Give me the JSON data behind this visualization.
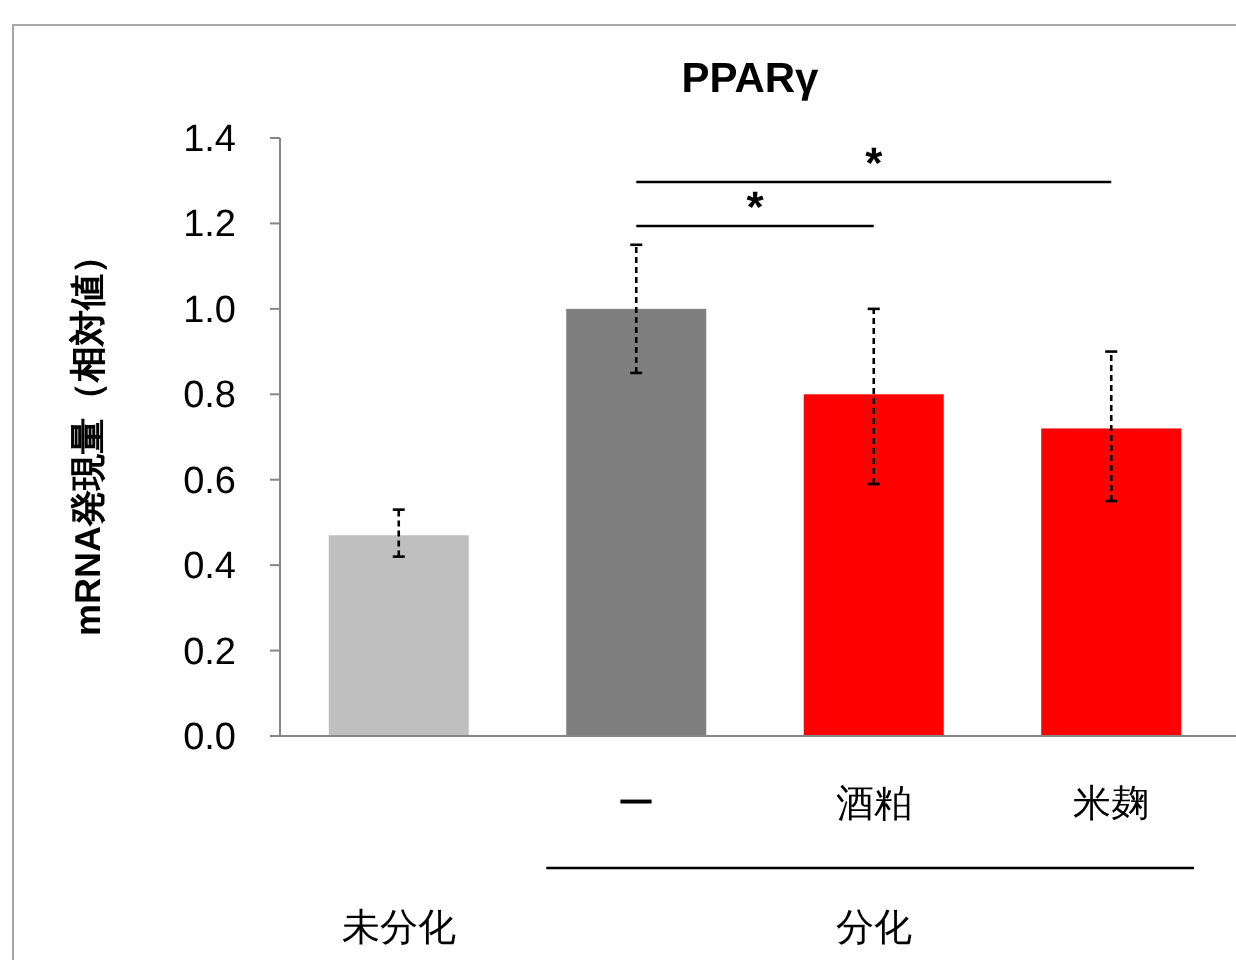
{
  "chart_data": {
    "type": "bar",
    "title": "PPARγ",
    "ylabel": "mRNA発現量（相対値）",
    "categories": [
      null,
      "ー",
      "酒粕",
      "米麹"
    ],
    "values": [
      0.47,
      1.0,
      0.8,
      0.72
    ],
    "colors": [
      "#bfbfbf",
      "#7f7f7f",
      "#ff0000",
      "#ff0000"
    ],
    "errors": [
      [
        0.42,
        0.53
      ],
      [
        0.85,
        1.15
      ],
      [
        0.59,
        1.0
      ],
      [
        0.55,
        0.9
      ]
    ],
    "ylim": [
      0,
      1.4
    ],
    "yticks": [
      {
        "value": 0,
        "label": "0.0"
      },
      {
        "value": 0.2,
        "label": "0.2"
      },
      {
        "value": 0.4,
        "label": "0.4"
      },
      {
        "value": 0.6,
        "label": "0.6"
      },
      {
        "value": 0.8,
        "label": "0.8"
      },
      {
        "value": 1.0,
        "label": "1.0"
      },
      {
        "value": 1.2,
        "label": "1.2"
      },
      {
        "value": 1.4,
        "label": "1.4"
      }
    ],
    "annotations": [
      "*",
      "*",
      "分化",
      "未分化"
    ],
    "grid": false
  }
}
